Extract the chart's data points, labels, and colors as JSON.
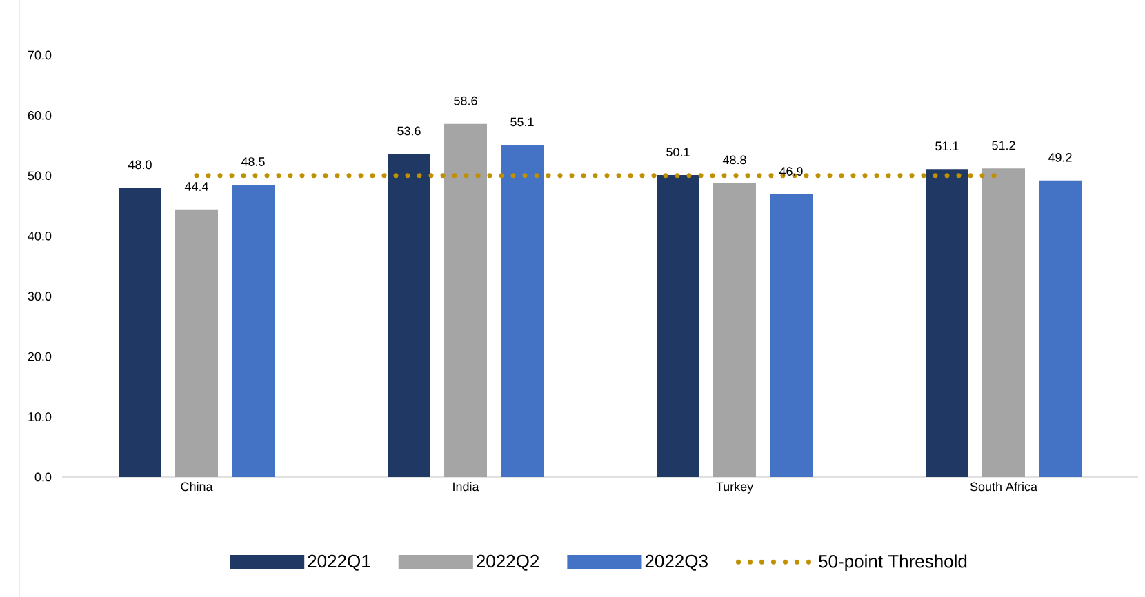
{
  "chart_data": {
    "type": "bar",
    "categories": [
      "China",
      "India",
      "Turkey",
      "South Africa"
    ],
    "series": [
      {
        "name": "2022Q1",
        "color": "#1f3864",
        "values": [
          48.0,
          53.6,
          50.1,
          51.1
        ],
        "value_labels": [
          "48.0",
          "53.6",
          "50.1",
          "51.1"
        ]
      },
      {
        "name": "2022Q2",
        "color": "#a5a5a5",
        "values": [
          44.4,
          58.6,
          48.8,
          51.2
        ],
        "value_labels": [
          "44.4",
          "58.6",
          "48.8",
          "51.2"
        ]
      },
      {
        "name": "2022Q3",
        "color": "#4472c4",
        "values": [
          48.5,
          55.1,
          46.9,
          49.2
        ],
        "value_labels": [
          "48.5",
          "55.1",
          "46.9",
          "49.2"
        ]
      },
      {
        "name": "50-point Threshold",
        "type": "line",
        "color": "#bf9000",
        "line_style": "dotted",
        "marker": "none",
        "values": [
          50,
          50,
          50,
          50
        ]
      }
    ],
    "ylim": [
      0,
      70
    ],
    "yticks": [
      {
        "value": 0,
        "label": "0.0"
      },
      {
        "value": 10,
        "label": "10.0"
      },
      {
        "value": 20,
        "label": "20.0"
      },
      {
        "value": 30,
        "label": "30.0"
      },
      {
        "value": 40,
        "label": "40.0"
      },
      {
        "value": 50,
        "label": "50.0"
      },
      {
        "value": 60,
        "label": "60.0"
      },
      {
        "value": 70,
        "label": "70.0"
      }
    ],
    "grid": false,
    "legend": "bottom"
  }
}
